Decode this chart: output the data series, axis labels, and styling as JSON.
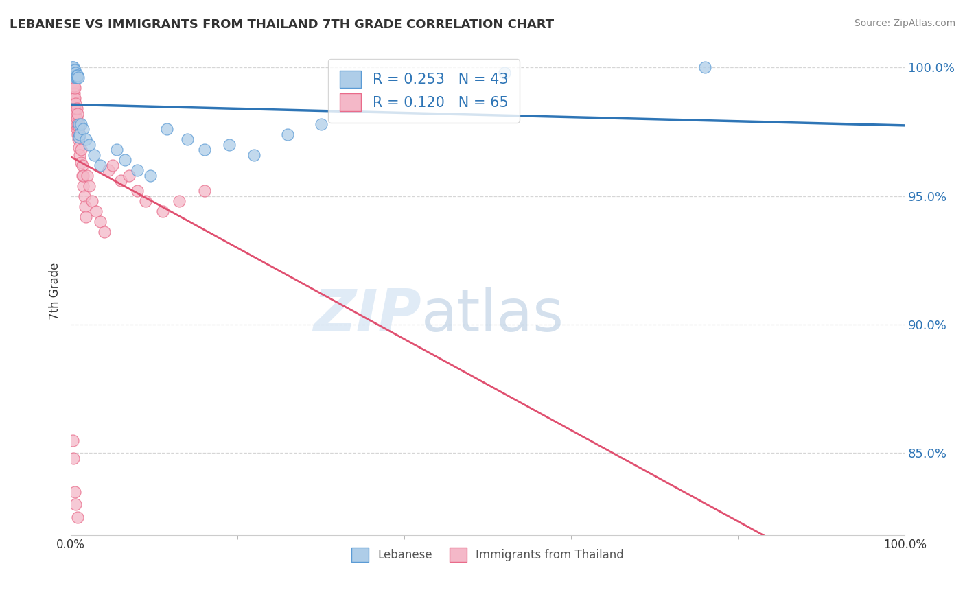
{
  "title": "LEBANESE VS IMMIGRANTS FROM THAILAND 7TH GRADE CORRELATION CHART",
  "source": "Source: ZipAtlas.com",
  "ylabel": "7th Grade",
  "xlim": [
    0.0,
    1.0
  ],
  "ylim": [
    0.818,
    1.008
  ],
  "yticks": [
    0.85,
    0.9,
    0.95,
    1.0
  ],
  "ytick_labels": [
    "85.0%",
    "90.0%",
    "95.0%",
    "100.0%"
  ],
  "xticks": [
    0.0,
    1.0
  ],
  "xtick_labels": [
    "0.0%",
    "100.0%"
  ],
  "legend_text_blue": "R = 0.253   N = 43",
  "legend_text_pink": "R = 0.120   N = 65",
  "legend_label_blue": "Lebanese",
  "legend_label_pink": "Immigrants from Thailand",
  "blue_fill": "#aecde8",
  "blue_edge": "#5b9bd5",
  "blue_line": "#2e75b6",
  "pink_fill": "#f4b8c8",
  "pink_edge": "#e96b8a",
  "pink_line": "#e05070",
  "background_color": "#ffffff",
  "watermark_zip": "ZIP",
  "watermark_atlas": "atlas",
  "blue_scatter_x": [
    0.001,
    0.001,
    0.002,
    0.002,
    0.002,
    0.003,
    0.003,
    0.003,
    0.003,
    0.004,
    0.004,
    0.005,
    0.005,
    0.005,
    0.006,
    0.006,
    0.006,
    0.007,
    0.007,
    0.008,
    0.009,
    0.01,
    0.01,
    0.011,
    0.012,
    0.015,
    0.018,
    0.022,
    0.028,
    0.035,
    0.055,
    0.065,
    0.08,
    0.095,
    0.115,
    0.14,
    0.16,
    0.19,
    0.22,
    0.26,
    0.3,
    0.52,
    0.76
  ],
  "blue_scatter_y": [
    0.998,
    1.0,
    0.998,
    1.0,
    0.998,
    0.998,
    0.999,
    1.0,
    0.998,
    0.997,
    0.998,
    0.997,
    0.998,
    0.999,
    0.996,
    0.997,
    0.998,
    0.996,
    0.997,
    0.997,
    0.996,
    0.973,
    0.978,
    0.974,
    0.978,
    0.976,
    0.972,
    0.97,
    0.966,
    0.962,
    0.968,
    0.964,
    0.96,
    0.958,
    0.976,
    0.972,
    0.968,
    0.97,
    0.966,
    0.974,
    0.978,
    0.998,
    1.0
  ],
  "pink_scatter_x": [
    0.001,
    0.001,
    0.001,
    0.001,
    0.002,
    0.002,
    0.002,
    0.002,
    0.002,
    0.003,
    0.003,
    0.003,
    0.003,
    0.004,
    0.004,
    0.004,
    0.004,
    0.005,
    0.005,
    0.005,
    0.005,
    0.006,
    0.006,
    0.006,
    0.007,
    0.007,
    0.007,
    0.008,
    0.008,
    0.008,
    0.009,
    0.009,
    0.01,
    0.01,
    0.01,
    0.011,
    0.012,
    0.012,
    0.014,
    0.014,
    0.015,
    0.015,
    0.016,
    0.017,
    0.018,
    0.02,
    0.022,
    0.025,
    0.03,
    0.035,
    0.04,
    0.045,
    0.05,
    0.06,
    0.07,
    0.08,
    0.09,
    0.11,
    0.13,
    0.16,
    0.002,
    0.003,
    0.005,
    0.006,
    0.008
  ],
  "pink_scatter_y": [
    0.99,
    0.994,
    0.996,
    0.998,
    0.988,
    0.992,
    0.994,
    0.996,
    0.998,
    0.985,
    0.99,
    0.992,
    0.994,
    0.982,
    0.988,
    0.99,
    0.993,
    0.98,
    0.984,
    0.988,
    0.992,
    0.978,
    0.982,
    0.986,
    0.976,
    0.98,
    0.984,
    0.974,
    0.978,
    0.982,
    0.972,
    0.976,
    0.969,
    0.973,
    0.977,
    0.966,
    0.963,
    0.968,
    0.958,
    0.962,
    0.954,
    0.958,
    0.95,
    0.946,
    0.942,
    0.958,
    0.954,
    0.948,
    0.944,
    0.94,
    0.936,
    0.96,
    0.962,
    0.956,
    0.958,
    0.952,
    0.948,
    0.944,
    0.948,
    0.952,
    0.855,
    0.848,
    0.835,
    0.83,
    0.825
  ]
}
